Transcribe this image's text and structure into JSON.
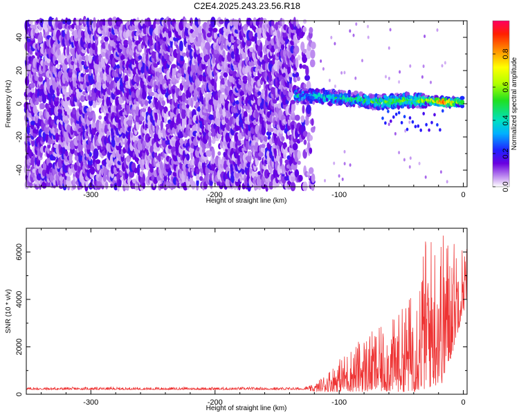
{
  "title": "C2E4.2025.243.23.56.R18",
  "chart_data": [
    {
      "type": "heatmap",
      "title": "C2E4.2025.243.23.56.R18",
      "xlabel": "Height of straight line (km)",
      "ylabel": "Frequency (Hz)",
      "xlim": [
        -352,
        3
      ],
      "ylim": [
        -50,
        50
      ],
      "x_ticks": [
        -300,
        -200,
        -100,
        0
      ],
      "x_tick_labels": [
        "-300",
        "-200",
        "-100",
        "0"
      ],
      "y_ticks": [
        -40,
        -20,
        0,
        20,
        40
      ],
      "y_tick_labels": [
        "-40",
        "-20",
        "0",
        "20",
        "40"
      ],
      "noise_region_x": [
        -352,
        -120
      ],
      "signal_track": [
        {
          "x": -135,
          "freq": 5,
          "amp": 0.35
        },
        {
          "x": -110,
          "freq": 4,
          "amp": 0.4
        },
        {
          "x": -90,
          "freq": 3,
          "amp": 0.45
        },
        {
          "x": -70,
          "freq": 1,
          "amp": 0.5
        },
        {
          "x": -50,
          "freq": 2,
          "amp": 0.55
        },
        {
          "x": -30,
          "freq": 2,
          "amp": 0.6
        },
        {
          "x": -15,
          "freq": 1,
          "amp": 0.95
        },
        {
          "x": 0,
          "freq": 1,
          "amp": 0.5
        }
      ],
      "colorbar": {
        "label": "Normalized spectral amplitude",
        "range": [
          0,
          1
        ],
        "ticks": [
          0.0,
          0.2,
          0.4,
          0.6,
          0.8
        ],
        "tick_labels": [
          "0.0",
          "0.2",
          "0.4",
          "0.6",
          "0.8"
        ]
      }
    },
    {
      "type": "line",
      "xlabel": "Height of straight line (km)",
      "ylabel": "SNR (10 * v/v)",
      "xlim": [
        -352,
        3
      ],
      "ylim": [
        0,
        7000
      ],
      "x_ticks": [
        -300,
        -200,
        -100,
        0
      ],
      "x_tick_labels": [
        "-300",
        "-200",
        "-100",
        "0"
      ],
      "y_ticks": [
        0,
        2000,
        4000,
        6000
      ],
      "y_tick_labels": [
        "0",
        "2000",
        "4000",
        "6000"
      ],
      "series": [
        {
          "name": "SNR",
          "color": "#ee3333",
          "envelope": [
            {
              "x": -352,
              "min": 150,
              "max": 300
            },
            {
              "x": -130,
              "min": 150,
              "max": 300
            },
            {
              "x": -120,
              "min": 120,
              "max": 400
            },
            {
              "x": -100,
              "min": 100,
              "max": 1500
            },
            {
              "x": -90,
              "min": 100,
              "max": 2000
            },
            {
              "x": -80,
              "min": 100,
              "max": 2500
            },
            {
              "x": -60,
              "min": 100,
              "max": 3000
            },
            {
              "x": -50,
              "min": 100,
              "max": 3600
            },
            {
              "x": -40,
              "min": 100,
              "max": 4500
            },
            {
              "x": -30,
              "min": 200,
              "max": 6800
            },
            {
              "x": -15,
              "min": 500,
              "max": 7000
            },
            {
              "x": -5,
              "min": 2500,
              "max": 6500
            },
            {
              "x": 3,
              "min": 4000,
              "max": 6300
            }
          ]
        }
      ]
    }
  ]
}
